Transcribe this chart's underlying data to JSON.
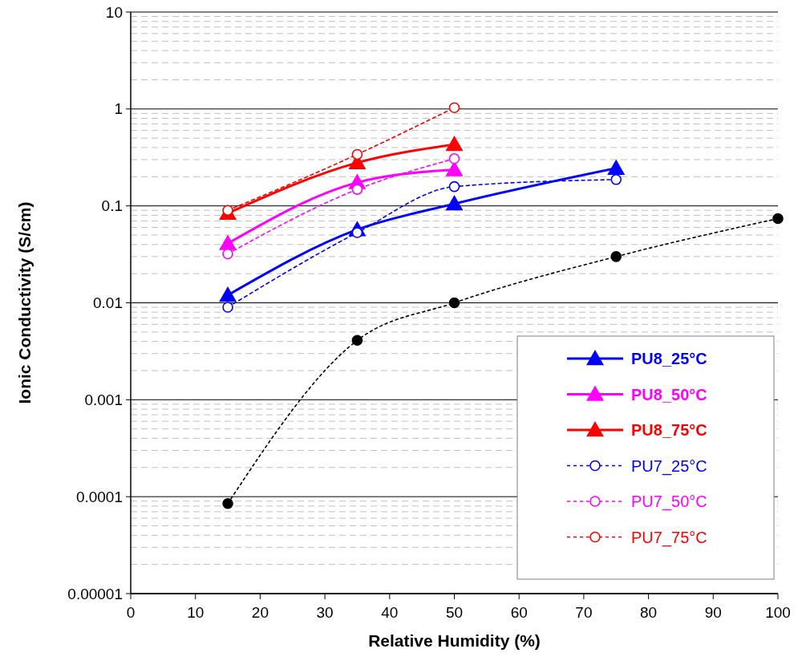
{
  "chart_data": {
    "type": "line",
    "xlabel": "Relative Humidity (%)",
    "ylabel": "Ionic Conductivity (S/cm)",
    "log": "y",
    "xlim": [
      0,
      100
    ],
    "xticks": [
      0,
      10,
      20,
      30,
      40,
      50,
      60,
      70,
      80,
      90,
      100
    ],
    "ylim": [
      1e-05,
      10
    ],
    "yticks": [
      {
        "value": 1e-05,
        "label": "0.00001"
      },
      0.0001,
      0.001,
      0.01,
      0.1,
      1,
      10
    ],
    "grid": "y",
    "legend": "bottom right",
    "series": [
      {
        "name": "PU8_25°C",
        "color": "#0000ff",
        "marker": "triangle",
        "line_style": "solid",
        "x": [
          15,
          35,
          50,
          75
        ],
        "values": [
          0.012,
          0.057,
          0.105,
          0.245
        ]
      },
      {
        "name": "PU8_50°C",
        "color": "#ff00ff",
        "marker": "triangle",
        "line_style": "solid",
        "x": [
          15,
          35,
          50
        ],
        "values": [
          0.041,
          0.174,
          0.236
        ]
      },
      {
        "name": "PU8_75°C",
        "color": "#ff0000",
        "marker": "triangle",
        "line_style": "solid",
        "x": [
          15,
          35,
          50
        ],
        "values": [
          0.084,
          0.279,
          0.43
        ]
      },
      {
        "name": "PU7_25°C",
        "color": "#0000ff",
        "marker": "circle",
        "line_style": "dashed",
        "x": [
          15,
          35,
          50,
          75
        ],
        "values": [
          0.009,
          0.053,
          0.158,
          0.187
        ]
      },
      {
        "name": "PU7_50°C",
        "color": "#ff00ff",
        "marker": "circle",
        "line_style": "dashed",
        "x": [
          15,
          35,
          50
        ],
        "values": [
          0.032,
          0.148,
          0.307
        ]
      },
      {
        "name": "PU7_75°C",
        "color": "#ff0000",
        "marker": "circle",
        "line_style": "dashed",
        "x": [
          15,
          35,
          50
        ],
        "values": [
          0.09,
          0.34,
          1.03
        ]
      },
      {
        "color": "#000000",
        "marker": "circle",
        "line_style": "dotted",
        "x": [
          15,
          35,
          50,
          75,
          100
        ],
        "values": [
          8.5e-05,
          0.0041,
          0.01,
          0.03,
          0.074
        ]
      }
    ]
  }
}
